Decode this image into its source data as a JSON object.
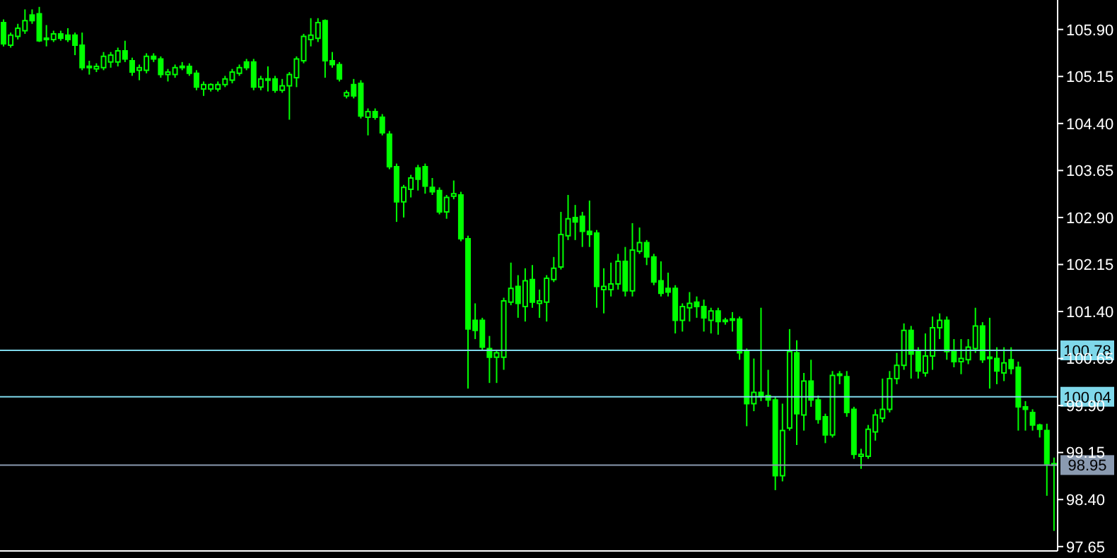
{
  "chart_data": {
    "type": "candlestick",
    "color": "#00ff00",
    "categories": [
      null,
      null,
      null,
      null,
      null,
      null,
      null,
      null,
      null,
      null,
      null,
      null,
      null,
      null,
      null,
      null,
      null,
      null,
      null,
      null,
      null,
      null,
      null,
      null,
      null,
      null,
      null,
      null,
      null,
      null,
      null,
      null,
      null,
      null,
      null,
      null,
      null,
      null,
      null,
      null,
      null,
      null,
      null,
      null,
      null,
      null,
      null,
      null,
      null,
      null,
      null,
      null,
      null,
      null,
      null,
      null,
      null,
      null,
      null,
      null,
      null,
      null,
      null,
      null,
      null,
      null,
      null,
      null,
      null,
      null,
      null,
      null,
      null,
      null,
      null,
      null,
      null,
      null,
      null,
      null,
      null,
      null,
      null,
      null,
      null,
      null,
      null,
      null,
      null,
      null,
      null,
      null,
      null,
      null,
      null,
      null,
      null,
      null,
      null,
      null,
      null,
      null,
      null,
      null,
      null,
      null,
      null,
      null,
      null,
      null,
      null,
      null,
      null,
      null,
      null,
      null,
      null,
      null,
      null,
      null,
      null,
      null,
      null,
      null,
      null,
      null,
      null,
      null,
      null,
      null,
      null,
      null,
      null,
      null,
      null,
      null,
      null,
      null,
      null,
      null,
      null,
      null,
      null,
      null,
      null,
      null,
      null,
      null
    ],
    "ohlc": [
      [
        106.01,
        106.06,
        105.63,
        105.67
      ],
      [
        105.65,
        105.85,
        105.61,
        105.81
      ],
      [
        105.79,
        105.99,
        105.74,
        105.92
      ],
      [
        105.88,
        106.22,
        105.83,
        106.04
      ],
      [
        106.13,
        106.22,
        105.99,
        106.04
      ],
      [
        106.15,
        106.26,
        105.7,
        105.72
      ],
      [
        105.74,
        105.97,
        105.63,
        105.74
      ],
      [
        105.74,
        105.88,
        105.7,
        105.83
      ],
      [
        105.83,
        105.88,
        105.72,
        105.76
      ],
      [
        105.81,
        105.92,
        105.7,
        105.74
      ],
      [
        105.81,
        105.85,
        105.49,
        105.65
      ],
      [
        105.65,
        105.85,
        105.25,
        105.29
      ],
      [
        105.29,
        105.4,
        105.18,
        105.29
      ],
      [
        105.27,
        105.36,
        105.22,
        105.31
      ],
      [
        105.29,
        105.54,
        105.25,
        105.47
      ],
      [
        105.38,
        105.54,
        105.29,
        105.49
      ],
      [
        105.38,
        105.61,
        105.31,
        105.56
      ],
      [
        105.56,
        105.72,
        105.38,
        105.43
      ],
      [
        105.4,
        105.45,
        105.16,
        105.22
      ],
      [
        105.25,
        105.34,
        105.09,
        105.29
      ],
      [
        105.25,
        105.52,
        105.2,
        105.47
      ],
      [
        105.47,
        105.52,
        105.38,
        105.43
      ],
      [
        105.43,
        105.47,
        105.13,
        105.18
      ],
      [
        105.18,
        105.27,
        105.07,
        105.22
      ],
      [
        105.18,
        105.34,
        105.13,
        105.29
      ],
      [
        105.31,
        105.38,
        105.25,
        105.29
      ],
      [
        105.31,
        105.36,
        105.16,
        105.2
      ],
      [
        105.2,
        105.25,
        104.93,
        104.98
      ],
      [
        104.95,
        105.07,
        104.84,
        105.02
      ],
      [
        104.95,
        105.04,
        104.91,
        105.02
      ],
      [
        104.95,
        105.07,
        104.91,
        105.02
      ],
      [
        105.02,
        105.16,
        104.98,
        105.11
      ],
      [
        105.09,
        105.27,
        105.04,
        105.22
      ],
      [
        105.2,
        105.34,
        105.16,
        105.29
      ],
      [
        105.38,
        105.43,
        105.25,
        105.29
      ],
      [
        105.38,
        105.43,
        104.93,
        104.98
      ],
      [
        104.98,
        105.16,
        104.93,
        105.11
      ],
      [
        105.09,
        105.31,
        104.91,
        105.09
      ],
      [
        105.11,
        105.16,
        104.89,
        104.93
      ],
      [
        104.93,
        105.11,
        104.89,
        105.0
      ],
      [
        105.0,
        105.22,
        104.46,
        105.18
      ],
      [
        105.13,
        105.47,
        104.98,
        105.43
      ],
      [
        105.4,
        105.83,
        105.36,
        105.79
      ],
      [
        105.74,
        106.08,
        105.63,
        105.81
      ],
      [
        105.76,
        106.08,
        105.7,
        106.01
      ],
      [
        106.04,
        106.06,
        105.13,
        105.4
      ],
      [
        105.4,
        105.54,
        105.29,
        105.34
      ],
      [
        105.34,
        105.38,
        105.07,
        105.11
      ],
      [
        104.84,
        104.93,
        104.8,
        104.89
      ],
      [
        105.02,
        105.11,
        104.8,
        104.84
      ],
      [
        105.04,
        105.09,
        104.48,
        104.52
      ],
      [
        104.5,
        104.64,
        104.21,
        104.59
      ],
      [
        104.59,
        104.64,
        104.46,
        104.5
      ],
      [
        104.5,
        104.55,
        104.21,
        104.25
      ],
      [
        104.23,
        104.28,
        103.67,
        103.71
      ],
      [
        103.71,
        103.76,
        102.83,
        103.15
      ],
      [
        103.15,
        103.42,
        102.9,
        103.38
      ],
      [
        103.35,
        103.58,
        103.22,
        103.53
      ],
      [
        103.69,
        103.74,
        103.33,
        103.51
      ],
      [
        103.71,
        103.76,
        103.28,
        103.4
      ],
      [
        103.38,
        103.53,
        103.26,
        103.31
      ],
      [
        103.33,
        103.38,
        102.95,
        102.99
      ],
      [
        102.99,
        103.26,
        102.88,
        103.22
      ],
      [
        103.24,
        103.49,
        103.19,
        103.28
      ],
      [
        103.26,
        103.31,
        102.52,
        102.56
      ],
      [
        102.56,
        102.61,
        100.17,
        101.12
      ],
      [
        101.26,
        101.53,
        100.96,
        101.1
      ],
      [
        101.26,
        101.3,
        100.78,
        100.83
      ],
      [
        100.81,
        101.01,
        100.26,
        100.67
      ],
      [
        100.67,
        100.78,
        100.26,
        100.74
      ],
      [
        100.67,
        101.62,
        100.47,
        101.57
      ],
      [
        101.55,
        102.18,
        101.5,
        101.77
      ],
      [
        101.8,
        101.98,
        101.3,
        101.53
      ],
      [
        101.48,
        102.09,
        101.24,
        101.89
      ],
      [
        101.91,
        102.14,
        101.46,
        101.55
      ],
      [
        101.53,
        101.75,
        101.3,
        101.57
      ],
      [
        101.55,
        101.98,
        101.24,
        101.93
      ],
      [
        101.91,
        102.27,
        101.87,
        102.09
      ],
      [
        102.11,
        102.99,
        102.07,
        102.63
      ],
      [
        102.61,
        103.26,
        102.54,
        102.88
      ],
      [
        102.9,
        103.1,
        102.54,
        102.83
      ],
      [
        102.92,
        102.99,
        102.43,
        102.68
      ],
      [
        102.68,
        103.17,
        102.43,
        102.63
      ],
      [
        102.65,
        102.7,
        101.46,
        101.8
      ],
      [
        101.75,
        102.09,
        101.37,
        101.8
      ],
      [
        101.75,
        102.18,
        101.64,
        101.84
      ],
      [
        101.84,
        102.32,
        101.75,
        102.2
      ],
      [
        102.2,
        102.43,
        101.64,
        101.73
      ],
      [
        101.73,
        102.81,
        101.64,
        102.38
      ],
      [
        102.36,
        102.74,
        102.32,
        102.5
      ],
      [
        102.5,
        102.54,
        102.14,
        102.27
      ],
      [
        102.27,
        102.32,
        101.82,
        101.87
      ],
      [
        101.89,
        102.2,
        101.64,
        101.69
      ],
      [
        101.77,
        102.02,
        101.64,
        101.71
      ],
      [
        101.77,
        101.82,
        101.05,
        101.26
      ],
      [
        101.26,
        101.53,
        101.08,
        101.48
      ],
      [
        101.46,
        101.71,
        101.24,
        101.53
      ],
      [
        101.55,
        101.64,
        101.3,
        101.48
      ],
      [
        101.48,
        101.59,
        101.08,
        101.3
      ],
      [
        101.26,
        101.46,
        101.05,
        101.41
      ],
      [
        101.41,
        101.46,
        101.03,
        101.24
      ],
      [
        101.24,
        101.3,
        101.19,
        101.26
      ],
      [
        101.26,
        101.39,
        101.08,
        101.26
      ],
      [
        101.28,
        101.32,
        100.63,
        100.74
      ],
      [
        100.76,
        100.81,
        99.57,
        99.93
      ],
      [
        99.93,
        100.65,
        99.81,
        100.11
      ],
      [
        100.11,
        101.46,
        99.97,
        100.04
      ],
      [
        100.06,
        100.47,
        99.88,
        99.99
      ],
      [
        99.99,
        100.04,
        98.55,
        98.78
      ],
      [
        98.78,
        99.93,
        98.69,
        99.5
      ],
      [
        99.54,
        101.12,
        99.5,
        100.76
      ],
      [
        100.74,
        100.94,
        99.27,
        99.77
      ],
      [
        99.75,
        100.42,
        99.5,
        100.29
      ],
      [
        100.29,
        100.63,
        99.88,
        99.99
      ],
      [
        99.99,
        100.06,
        99.61,
        99.68
      ],
      [
        99.72,
        99.77,
        99.3,
        99.43
      ],
      [
        99.43,
        100.45,
        99.39,
        100.38
      ],
      [
        100.38,
        100.45,
        100.24,
        100.38
      ],
      [
        100.36,
        100.45,
        99.72,
        99.79
      ],
      [
        99.84,
        99.88,
        99.05,
        99.12
      ],
      [
        99.09,
        99.21,
        98.89,
        99.12
      ],
      [
        99.09,
        99.59,
        99.05,
        99.52
      ],
      [
        99.48,
        99.84,
        99.34,
        99.75
      ],
      [
        99.7,
        100.33,
        99.63,
        99.84
      ],
      [
        99.84,
        100.45,
        99.79,
        100.33
      ],
      [
        100.33,
        100.74,
        100.24,
        100.54
      ],
      [
        100.54,
        101.21,
        100.47,
        101.1
      ],
      [
        101.1,
        101.17,
        100.33,
        100.72
      ],
      [
        100.76,
        100.83,
        100.33,
        100.45
      ],
      [
        100.42,
        101.05,
        100.36,
        100.69
      ],
      [
        100.69,
        101.32,
        100.47,
        101.14
      ],
      [
        101.14,
        101.37,
        100.96,
        101.26
      ],
      [
        101.26,
        101.32,
        100.63,
        100.76
      ],
      [
        100.78,
        100.96,
        100.51,
        100.6
      ],
      [
        100.6,
        100.96,
        100.4,
        100.65
      ],
      [
        100.63,
        100.96,
        100.56,
        100.83
      ],
      [
        100.81,
        101.46,
        100.74,
        101.17
      ],
      [
        101.17,
        101.23,
        100.58,
        100.63
      ],
      [
        100.65,
        101.3,
        100.17,
        100.65
      ],
      [
        100.65,
        100.83,
        100.24,
        100.45
      ],
      [
        100.42,
        100.83,
        100.29,
        100.58
      ],
      [
        100.63,
        100.83,
        100.4,
        100.49
      ],
      [
        100.51,
        100.6,
        99.5,
        99.88
      ],
      [
        99.88,
        99.97,
        99.5,
        99.84
      ],
      [
        99.79,
        99.84,
        99.5,
        99.59
      ],
      [
        99.59,
        99.61,
        99.39,
        99.52
      ],
      [
        99.5,
        99.61,
        98.46,
        98.97
      ],
      [
        98.97,
        99.07,
        97.9,
        98.95
      ]
    ],
    "ylim": [
      97.58,
      106.37
    ],
    "yticks": [
      {
        "value": 97.65,
        "label": "97.65"
      },
      {
        "value": 98.4,
        "label": "98.40"
      },
      {
        "value": 99.15,
        "label": "99.15"
      },
      {
        "value": 99.9,
        "label": "99.90"
      },
      {
        "value": 100.65,
        "label": "100.65"
      },
      {
        "value": 101.4,
        "label": "101.40"
      },
      {
        "value": 102.15,
        "label": "102.15"
      },
      {
        "value": 102.9,
        "label": "102.90"
      },
      {
        "value": 103.65,
        "label": "103.65"
      },
      {
        "value": 104.4,
        "label": "104.40"
      },
      {
        "value": 105.15,
        "label": "105.15"
      },
      {
        "value": 105.9,
        "label": "105.90"
      }
    ],
    "ref_lines": [
      {
        "axis": "y",
        "value": 100.78,
        "label": "100.78",
        "color": "#7fd8ea"
      },
      {
        "axis": "y",
        "value": 100.04,
        "label": "100.04",
        "color": "#7fd8ea"
      },
      {
        "axis": "y",
        "value": 98.95,
        "label": "98.95",
        "color": "#8a9ab0"
      }
    ],
    "tick_labels": "y"
  }
}
